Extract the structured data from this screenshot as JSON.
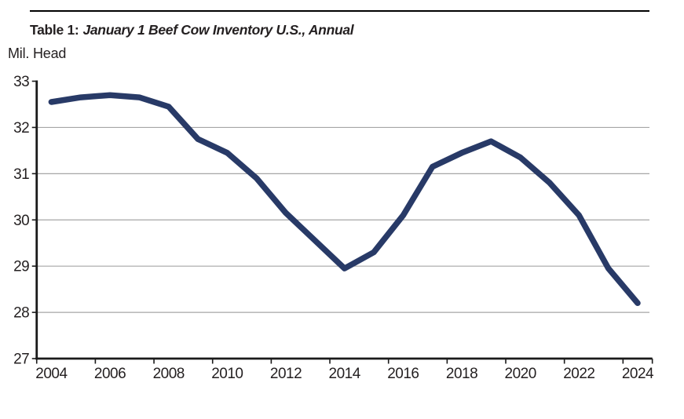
{
  "header": {
    "title_prefix": "Table 1:",
    "title_text": "January 1 Beef Cow Inventory U.S., Annual",
    "y_axis_unit_label": "Mil. Head"
  },
  "chart_data": {
    "type": "line",
    "title": "Table 1: January 1 Beef Cow Inventory U.S., Annual",
    "xlabel": "",
    "ylabel": "Mil. Head",
    "x": [
      2004,
      2005,
      2006,
      2007,
      2008,
      2009,
      2010,
      2011,
      2012,
      2013,
      2014,
      2015,
      2016,
      2017,
      2018,
      2019,
      2020,
      2021,
      2022,
      2023,
      2024
    ],
    "series": [
      {
        "name": "January 1 beef cow inventory (million head)",
        "values": [
          32.55,
          32.65,
          32.7,
          32.65,
          32.45,
          31.75,
          31.45,
          30.9,
          30.15,
          29.55,
          28.95,
          29.3,
          30.1,
          31.15,
          31.45,
          31.7,
          31.35,
          30.8,
          30.1,
          28.95,
          28.2
        ]
      }
    ],
    "ylim": [
      27,
      33
    ],
    "yticks": [
      27,
      28,
      29,
      30,
      31,
      32,
      33
    ],
    "xtick_labels": [
      "2004",
      "2006",
      "2008",
      "2010",
      "2012",
      "2014",
      "2016",
      "2018",
      "2020",
      "2022",
      "2024"
    ],
    "grid": "horizontal",
    "legend": "none",
    "line_color": "#283A67",
    "grid_color": "#A6A6A6",
    "axis_color": "#1A1A1A",
    "text_color": "#231F20"
  }
}
